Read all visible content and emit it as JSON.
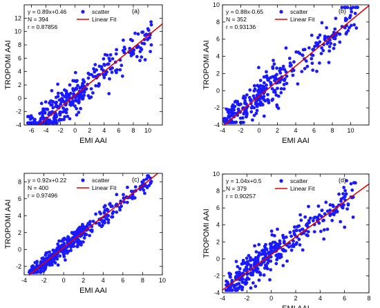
{
  "chart_data": [
    {
      "panel_label": "(a)",
      "type": "scatter",
      "xlabel": "EMI AAI",
      "ylabel": "TROPOMI AAI",
      "xlim": [
        -7,
        12
      ],
      "ylim": [
        -4,
        14
      ],
      "xticks": [
        -6,
        -4,
        -2,
        0,
        2,
        4,
        6,
        8,
        10
      ],
      "yticks": [
        -4,
        -2,
        0,
        2,
        4,
        6,
        8,
        10,
        12
      ],
      "stats": [
        "y = 0.89x+0.46",
        "N = 394",
        "r = 0.87856"
      ],
      "legend": {
        "scatter": "scatter",
        "fit": "Linear Fit",
        "placement": "top-right-of-stats"
      },
      "fit": {
        "slope": 0.89,
        "intercept": 0.46
      },
      "seed": 11,
      "n_points": 394,
      "xrange": [
        -6.5,
        10.5
      ],
      "noise": 1.3
    },
    {
      "panel_label": "(b)",
      "type": "scatter",
      "xlabel": "EMI AAI",
      "ylabel": "TROPOMI AAI",
      "xlim": [
        -4,
        12
      ],
      "ylim": [
        -4,
        10
      ],
      "xticks": [
        -4,
        -2,
        0,
        2,
        4,
        6,
        8,
        10
      ],
      "yticks": [
        -4,
        -2,
        0,
        2,
        4,
        6,
        8,
        10
      ],
      "stats": [
        "y = 0.88x-0.65",
        "N = 352",
        "r = 0.93136"
      ],
      "legend": {
        "scatter": "scatter",
        "fit": "Linear Fit",
        "placement": "top-right-of-stats"
      },
      "fit": {
        "slope": 0.88,
        "intercept": -0.65
      },
      "seed": 23,
      "n_points": 352,
      "xrange": [
        -3.8,
        10.8
      ],
      "noise": 1.1
    },
    {
      "panel_label": "(c)",
      "type": "scatter",
      "xlabel": "EMI AAI",
      "ylabel": "TROPOMI AAI",
      "xlim": [
        -4,
        10
      ],
      "ylim": [
        -3,
        9
      ],
      "xticks": [
        -4,
        -2,
        0,
        2,
        4,
        6,
        8,
        10
      ],
      "yticks": [
        -2,
        0,
        2,
        4,
        6,
        8
      ],
      "stats": [
        "y = 0.92x+0.22",
        "N = 400",
        "r = 0.97496"
      ],
      "legend": {
        "scatter": "scatter",
        "fit": "Linear Fit",
        "placement": "top-right-of-stats"
      },
      "fit": {
        "slope": 0.92,
        "intercept": 0.22
      },
      "seed": 37,
      "n_points": 400,
      "xrange": [
        -3.5,
        9.0
      ],
      "noise": 0.55
    },
    {
      "panel_label": "(d)",
      "type": "scatter",
      "xlabel": "EMI AAI",
      "ylabel": "TROPOMI AAI",
      "xlim": [
        -4,
        8
      ],
      "ylim": [
        -4,
        10
      ],
      "xticks": [
        -4,
        -2,
        0,
        2,
        4,
        6,
        8
      ],
      "yticks": [
        -4,
        -2,
        0,
        2,
        4,
        6,
        8,
        10
      ],
      "stats": [
        "y = 1.04x+0.5",
        "N = 379",
        "r = 0.90257"
      ],
      "legend": {
        "scatter": "scatter",
        "fit": "Linear Fit",
        "placement": "top-right-of-stats"
      },
      "fit": {
        "slope": 1.04,
        "intercept": 0.5
      },
      "seed": 53,
      "n_points": 379,
      "xrange": [
        -3.8,
        7.0
      ],
      "noise": 1.0
    }
  ],
  "colors": {
    "scatter": "#1a1aff",
    "fit": "#e00000",
    "axis": "#000000"
  }
}
